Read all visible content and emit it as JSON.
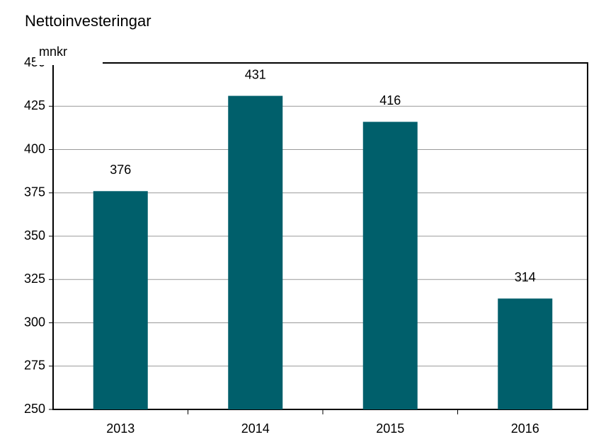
{
  "chart_data": {
    "type": "bar",
    "title": "Nettoinvesteringar",
    "y_label": "mnkr",
    "categories": [
      "2013",
      "2014",
      "2015",
      "2016"
    ],
    "values": [
      376,
      431,
      416,
      314
    ],
    "color": "#005f6b",
    "ylim": [
      250,
      450
    ],
    "yticks": [
      250,
      275,
      300,
      325,
      350,
      375,
      400,
      425,
      450
    ],
    "grid": true
  }
}
